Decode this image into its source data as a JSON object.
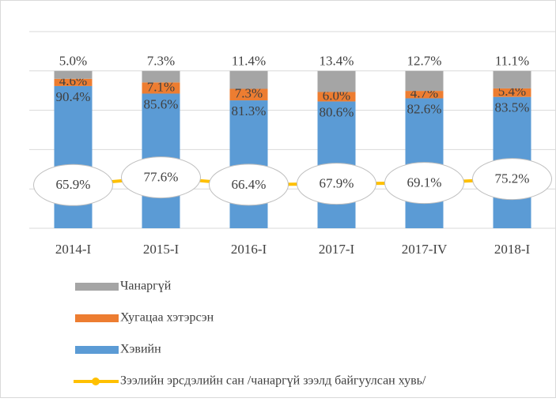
{
  "chart_data": {
    "type": "stacked-bar-line",
    "categories": [
      "2014-I",
      "2015-I",
      "2016-I",
      "2017-I",
      "2017-IV",
      "2018-I"
    ],
    "series": [
      {
        "name": "Хэвийн",
        "color": "#5b9bd5",
        "values": [
          90.4,
          85.6,
          81.3,
          80.6,
          82.6,
          83.5
        ],
        "value_labels": [
          "90.4%",
          "85.6%",
          "81.3%",
          "80.6%",
          "82.6%",
          "83.5%"
        ]
      },
      {
        "name": "Хугацаа хэтэрсэн",
        "color": "#ed7d31",
        "values": [
          4.6,
          7.1,
          7.3,
          6.0,
          4.7,
          5.4
        ],
        "value_labels": [
          "4.6%",
          "7.1%",
          "7.3%",
          "6.0%",
          "4.7%",
          "5.4%"
        ]
      },
      {
        "name": "Чанаргүй",
        "color": "#a5a5a5",
        "values": [
          5.0,
          7.3,
          11.4,
          13.4,
          12.7,
          11.1
        ],
        "value_labels": [
          "5.0%",
          "7.3%",
          "11.4%",
          "13.4%",
          "12.7%",
          "11.1%"
        ]
      },
      {
        "name": "Зээлийн эрсдэлийн сан /чанаргүй зээлд байгуулсан хувь/",
        "color": "#ffc000",
        "axis": "y2",
        "line": true,
        "values": [
          65.9,
          77.6,
          66.4,
          67.9,
          69.1,
          75.2
        ],
        "value_labels": [
          "65.9%",
          "77.6%",
          "66.4%",
          "67.9%",
          "69.1%",
          "75.2%"
        ]
      }
    ],
    "ylim": [
      0,
      125
    ],
    "yticks": [
      0,
      25,
      50,
      75,
      100,
      125
    ],
    "y2lim": [
      0,
      300
    ],
    "grid": true
  }
}
